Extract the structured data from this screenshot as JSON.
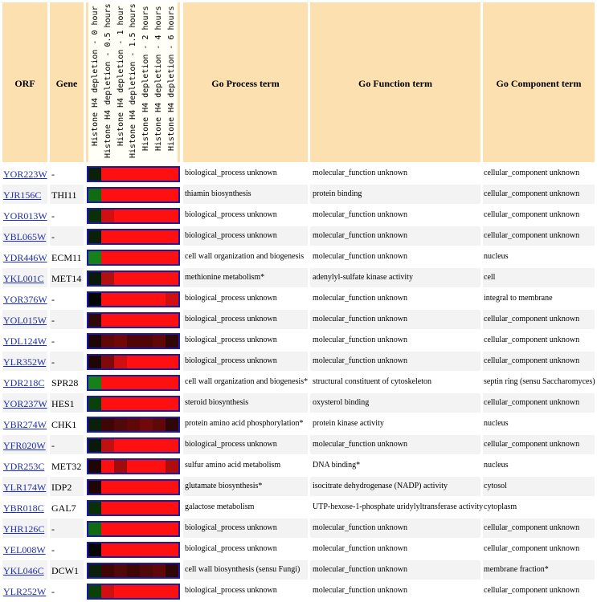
{
  "headers": {
    "orf": "ORF",
    "gene": "Gene",
    "process": "Go Process term",
    "function": "Go Function term",
    "component": "Go Component term",
    "timepoints": [
      "Histone H4 depletion - 0 hour",
      "Histone H4 depletion - 0.5 hours",
      "Histone H4 depletion - 1 hour",
      "Histone H4 depletion - 1.5 hours",
      "Histone H4 depletion - 2 hours",
      "Histone H4 depletion - 4 hours",
      "Histone H4 depletion - 6 hours"
    ]
  },
  "rows": [
    {
      "orf": "YOR223W",
      "gene": "-",
      "process": "biological_process unknown",
      "function": "molecular_function unknown",
      "component": "cellular_component unknown",
      "heat": [
        "#0a200a",
        "#ff1010",
        "#ff1010",
        "#ff1010",
        "#ff1010",
        "#ff1010",
        "#ff1010"
      ]
    },
    {
      "orf": "YJR156C",
      "gene": "THI11",
      "process": "thiamin biosynthesis",
      "function": "protein binding",
      "component": "cellular_component unknown",
      "heat": [
        "#116b11",
        "#ff1010",
        "#ff1010",
        "#ff1010",
        "#ff1010",
        "#ff1010",
        "#ff1010"
      ]
    },
    {
      "orf": "YOR013W",
      "gene": "-",
      "process": "biological_process unknown",
      "function": "molecular_function unknown",
      "component": "cellular_component unknown",
      "heat": [
        "#0a300a",
        "#d01010",
        "#ff1010",
        "#ff1010",
        "#ff1010",
        "#ff1010",
        "#ff1010"
      ]
    },
    {
      "orf": "YBL065W",
      "gene": "-",
      "process": "biological_process unknown",
      "function": "molecular_function unknown",
      "component": "cellular_component unknown",
      "heat": [
        "#0a200a",
        "#ff1010",
        "#ff1010",
        "#ff1010",
        "#ff1010",
        "#ff1010",
        "#ff1010"
      ]
    },
    {
      "orf": "YDR446W",
      "gene": "ECM11",
      "process": "cell wall organization and biogenesis",
      "function": "molecular_function unknown",
      "component": "nucleus",
      "heat": [
        "#188018",
        "#ff1010",
        "#ff1010",
        "#ff1010",
        "#ff1010",
        "#ff1010",
        "#ff1010"
      ]
    },
    {
      "orf": "YKL001C",
      "gene": "MET14",
      "process": "methionine metabolism*",
      "function": "adenylyl-sulfate kinase activity",
      "component": "cell",
      "heat": [
        "#0a1a0a",
        "#b01010",
        "#ff1010",
        "#ff1010",
        "#ff1010",
        "#ff1010",
        "#ff1010"
      ]
    },
    {
      "orf": "YOR376W",
      "gene": "-",
      "process": "biological_process unknown",
      "function": "molecular_function unknown",
      "component": "integral to membrane",
      "heat": [
        "#050505",
        "#ff1010",
        "#ff1010",
        "#ff1010",
        "#ff1010",
        "#ff1010",
        "#d01010"
      ]
    },
    {
      "orf": "YOL015W",
      "gene": "-",
      "process": "biological_process unknown",
      "function": "molecular_function unknown",
      "component": "cellular_component unknown",
      "heat": [
        "#300808",
        "#ff1010",
        "#ff1010",
        "#ff1010",
        "#ff1010",
        "#ff1010",
        "#ff1010"
      ]
    },
    {
      "orf": "YDL124W",
      "gene": "-",
      "process": "biological_process unknown",
      "function": "molecular_function unknown",
      "component": "cellular_component unknown",
      "heat": [
        "#200505",
        "#600808",
        "#700808",
        "#500606",
        "#500606",
        "#600808",
        "#300505"
      ]
    },
    {
      "orf": "YLR352W",
      "gene": "-",
      "process": "biological_process unknown",
      "function": "molecular_function unknown",
      "component": "cellular_component unknown",
      "heat": [
        "#200505",
        "#800a0a",
        "#d01010",
        "#ff1010",
        "#ff1010",
        "#ff1010",
        "#ff1010"
      ]
    },
    {
      "orf": "YDR218C",
      "gene": "SPR28",
      "process": "cell wall organization and biogenesis*",
      "function": "structural constituent of cytoskeleton",
      "component": "septin ring (sensu Saccharomyces)",
      "heat": [
        "#188018",
        "#ff1010",
        "#ff1010",
        "#ff1010",
        "#ff1010",
        "#ff1010",
        "#ff1010"
      ]
    },
    {
      "orf": "YOR237W",
      "gene": "HES1",
      "process": "steroid biosynthesis",
      "function": "oxysterol binding",
      "component": "cellular_component unknown",
      "heat": [
        "#0a400a",
        "#ff1010",
        "#ff1010",
        "#ff1010",
        "#ff1010",
        "#ff1010",
        "#ff1010"
      ]
    },
    {
      "orf": "YBR274W",
      "gene": "CHK1",
      "process": "protein amino acid phosphorylation*",
      "function": "protein kinase activity",
      "component": "nucleus",
      "heat": [
        "#0a200a",
        "#400606",
        "#500808",
        "#600808",
        "#700a0a",
        "#600808",
        "#300505"
      ]
    },
    {
      "orf": "YFR020W",
      "gene": "-",
      "process": "biological_process unknown",
      "function": "molecular_function unknown",
      "component": "cellular_component unknown",
      "heat": [
        "#0a1a0a",
        "#c01010",
        "#ff1010",
        "#ff1010",
        "#ff1010",
        "#ff1010",
        "#ff1010"
      ]
    },
    {
      "orf": "YDR253C",
      "gene": "MET32",
      "process": "sulfur amino acid metabolism",
      "function": "DNA binding*",
      "component": "nucleus",
      "heat": [
        "#200505",
        "#ff1010",
        "#a00c0c",
        "#ff1010",
        "#ff1010",
        "#ff1010",
        "#b00c0c"
      ]
    },
    {
      "orf": "YLR174W",
      "gene": "IDP2",
      "process": "glutamate biosynthesis*",
      "function": "isocitrate dehydrogenase (NADP) activity",
      "component": "cytosol",
      "heat": [
        "#200505",
        "#ff1010",
        "#ff1010",
        "#ff1010",
        "#ff1010",
        "#ff1010",
        "#ff1010"
      ]
    },
    {
      "orf": "YBR018C",
      "gene": "GAL7",
      "process": "galactose metabolism",
      "function": "UTP-hexose-1-phosphate uridylyltransferase activity",
      "component": "cytoplasm",
      "heat": [
        "#0a300a",
        "#ff1010",
        "#ff1010",
        "#ff1010",
        "#ff1010",
        "#ff1010",
        "#ff1010"
      ]
    },
    {
      "orf": "YHR126C",
      "gene": "-",
      "process": "biological_process unknown",
      "function": "molecular_function unknown",
      "component": "cellular_component unknown",
      "heat": [
        "#116b11",
        "#ff1010",
        "#ff1010",
        "#ff1010",
        "#ff1010",
        "#ff1010",
        "#ff1010"
      ]
    },
    {
      "orf": "YEL008W",
      "gene": "-",
      "process": "biological_process unknown",
      "function": "molecular_function unknown",
      "component": "cellular_component unknown",
      "heat": [
        "#050505",
        "#ff1010",
        "#ff1010",
        "#ff1010",
        "#ff1010",
        "#ff1010",
        "#ff1010"
      ]
    },
    {
      "orf": "YKL046C",
      "gene": "DCW1",
      "process": "cell wall biosynthesis (sensu Fungi)",
      "function": "molecular_function unknown",
      "component": "membrane fraction*",
      "heat": [
        "#0a200a",
        "#400606",
        "#500808",
        "#400606",
        "#500808",
        "#600808",
        "#300505"
      ]
    },
    {
      "orf": "YLR252W",
      "gene": "-",
      "process": "biological_process unknown",
      "function": "molecular_function unknown",
      "component": "cellular_component unknown",
      "heat": [
        "#0a400a",
        "#d01010",
        "#ff1010",
        "#ff1010",
        "#ff1010",
        "#ff1010",
        "#ff1010"
      ]
    }
  ]
}
